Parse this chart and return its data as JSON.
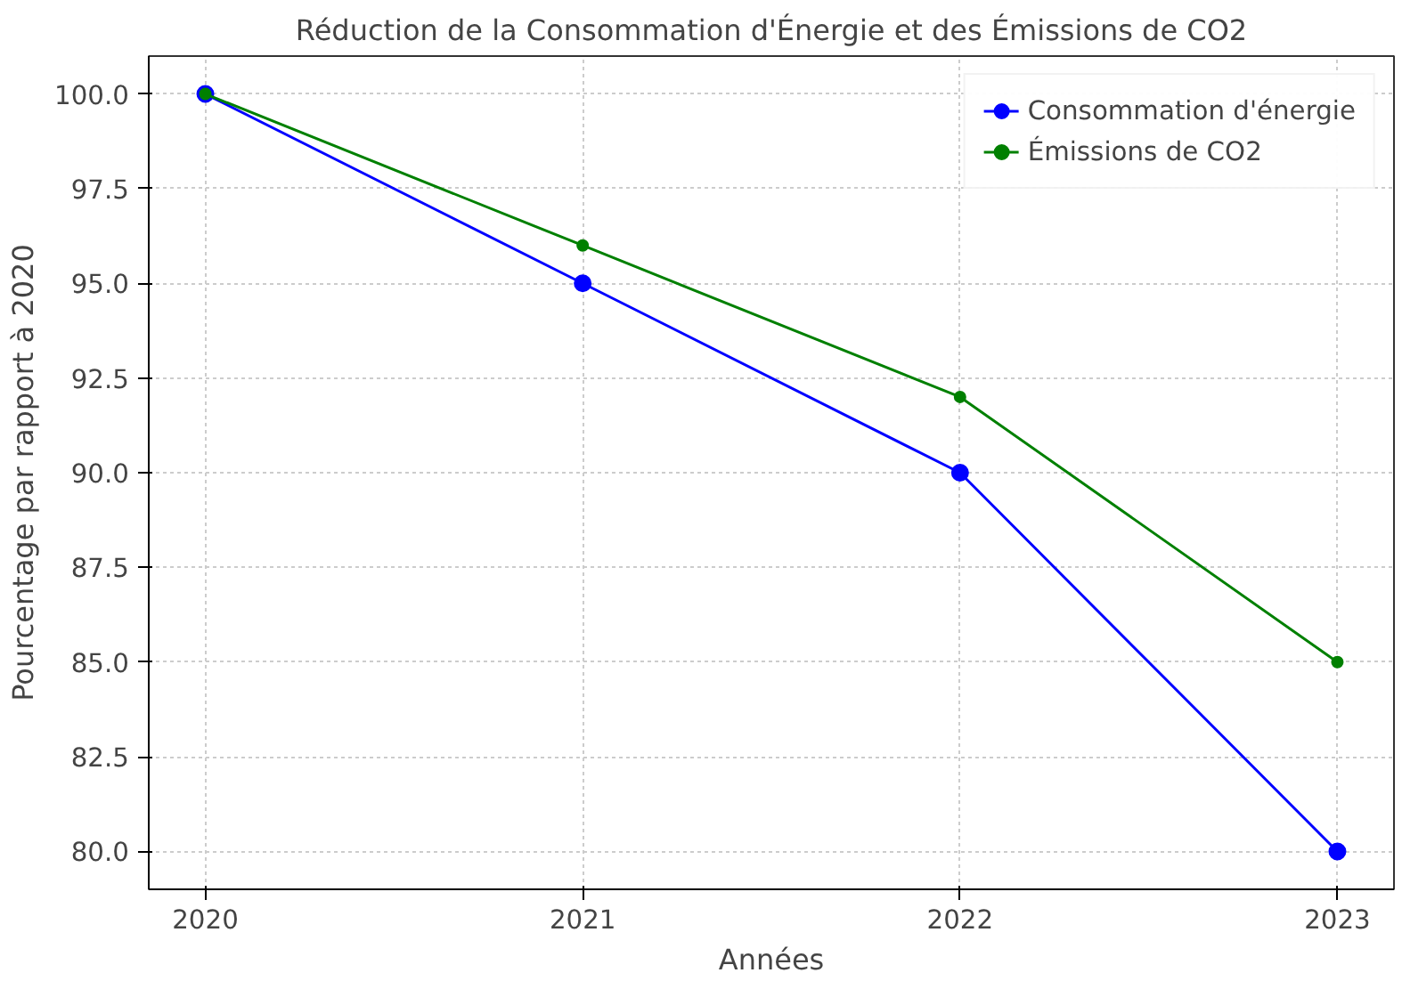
{
  "chart_data": {
    "type": "line",
    "title": "Réduction de la Consommation d'Énergie et des Émissions de CO2",
    "xlabel": "Années",
    "ylabel": "Pourcentage par rapport à 2020",
    "x": [
      2020,
      2021,
      2022,
      2023
    ],
    "series": [
      {
        "name": "Consommation d'énergie",
        "color": "#0000ff",
        "values": [
          100,
          95,
          90,
          80
        ]
      },
      {
        "name": "Émissions de CO2",
        "color": "#008000",
        "values": [
          100,
          96,
          92,
          85
        ]
      }
    ],
    "xlim": [
      2019.85,
      2023.15
    ],
    "xticks": [
      2020,
      2021,
      2022,
      2023
    ],
    "ylim": [
      79,
      101
    ],
    "yticks": [
      {
        "value": 80,
        "label": "80.0"
      },
      {
        "value": 82.5,
        "label": "82.5"
      },
      {
        "value": 85,
        "label": "85.0"
      },
      {
        "value": 87.5,
        "label": "87.5"
      },
      {
        "value": 90,
        "label": "90.0"
      },
      {
        "value": 92.5,
        "label": "92.5"
      },
      {
        "value": 95,
        "label": "95.0"
      },
      {
        "value": 97.5,
        "label": "97.5"
      },
      {
        "value": 100,
        "label": "100.0"
      }
    ],
    "grid": true,
    "legend": "top right",
    "marker": "circle",
    "line_style": "solid"
  }
}
